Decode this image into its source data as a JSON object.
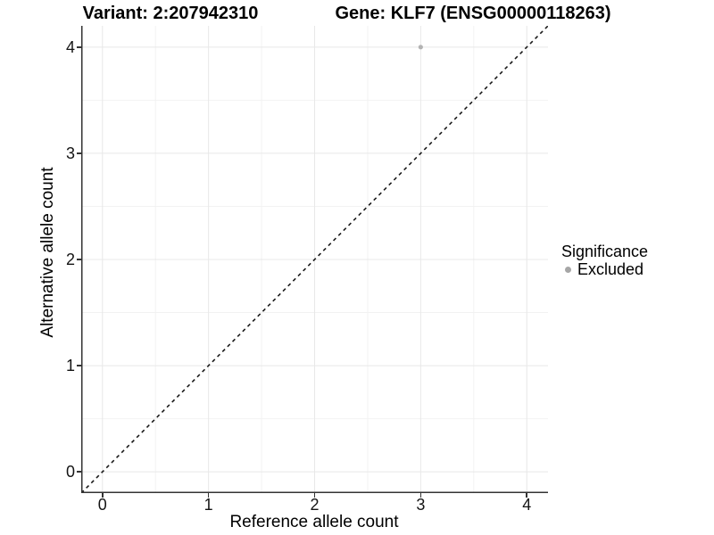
{
  "chart_data": {
    "type": "scatter",
    "title_variant": "Variant: 2:207942310",
    "title_gene": "Gene: KLF7 (ENSG00000118263)",
    "xlabel": "Reference allele count",
    "ylabel": "Alternative allele count",
    "xlim": [
      -0.2,
      4.2
    ],
    "ylim": [
      -0.2,
      4.2
    ],
    "x_ticks": [
      0,
      1,
      2,
      3,
      4
    ],
    "y_ticks": [
      0,
      1,
      2,
      3,
      4
    ],
    "x_minor_ticks": [
      0.5,
      1.5,
      2.5,
      3.5
    ],
    "y_minor_ticks": [
      0.5,
      1.5,
      2.5,
      3.5
    ],
    "grid": "major and minor gridlines on white panel",
    "points": [
      {
        "x": 3,
        "y": 4,
        "significance": "Excluded"
      }
    ],
    "identity_line": {
      "equation": "y = x",
      "style": "dashed"
    },
    "legend": {
      "title": "Significance",
      "position": "right",
      "entries": [
        {
          "label": "Excluded",
          "color": "#b3b3b3",
          "marker": "circle"
        }
      ]
    },
    "colors": {
      "point": "#b3b3b3",
      "legend_key": "#a6a6a6",
      "grid_major": "#e8e8e8",
      "grid_minor": "#f2f2f2",
      "axis_line": "#333333",
      "dashed_line": "#1a1a1a",
      "background": "#ffffff"
    }
  }
}
